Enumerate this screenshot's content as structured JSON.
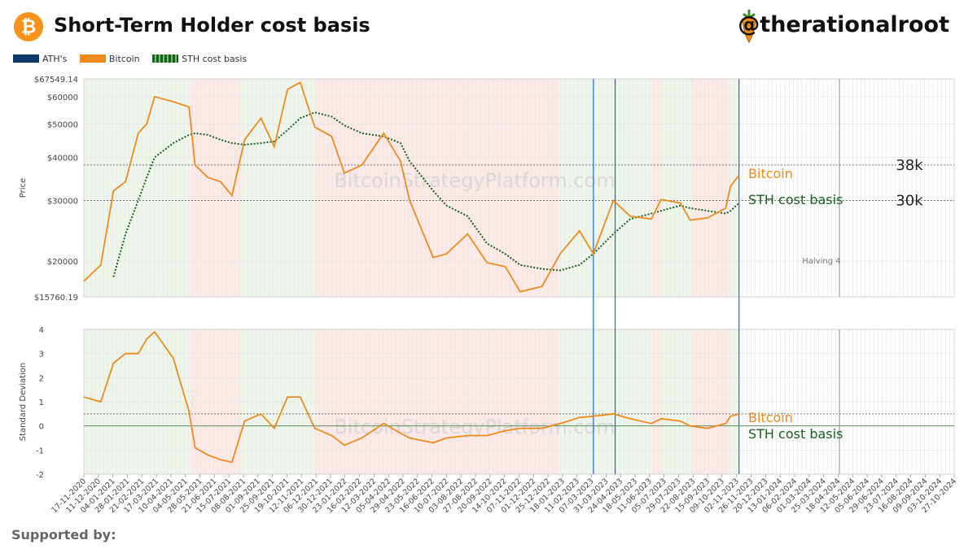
{
  "header": {
    "title": "Short-Term Holder cost basis",
    "handle": "@therationalroot",
    "logo_icon": "bitcoin-icon",
    "handle_icon": "carrot-icon"
  },
  "legend": [
    {
      "label": "ATH's",
      "color": "#0b3b66"
    },
    {
      "label": "Bitcoin",
      "color": "#f08a1c"
    },
    {
      "label": "STH cost basis",
      "color": "#1b5e20"
    }
  ],
  "watermark": "BitcoinStrategyPlatform.com",
  "footer": {
    "text": "Supported by:"
  },
  "chart_data": [
    {
      "type": "line",
      "ylabel": "Price",
      "yscale": "log",
      "ylim": [
        15760.19,
        67549.14
      ],
      "yticks": [
        {
          "v": 67549.14,
          "label": "$67549.14"
        },
        {
          "v": 60000,
          "label": "$60000"
        },
        {
          "v": 50000,
          "label": "$50000"
        },
        {
          "v": 40000,
          "label": "$40000"
        },
        {
          "v": 30000,
          "label": "$30000"
        },
        {
          "v": 20000,
          "label": "$20000"
        },
        {
          "v": 15760.19,
          "label": "$15760.19"
        }
      ],
      "reference_lines": [
        {
          "value": 38000,
          "label": "38k"
        },
        {
          "value": 30000,
          "label": "30k"
        }
      ],
      "series_labels": [
        {
          "name": "Bitcoin",
          "color": "#f08a1c"
        },
        {
          "name": "STH cost basis",
          "color": "#1b5e20"
        }
      ],
      "annotations": [
        {
          "date": "2024-04-20",
          "label": "Halving 4"
        }
      ],
      "x": [
        "2020-11-17",
        "2020-12-15",
        "2021-01-05",
        "2021-01-25",
        "2021-02-15",
        "2021-03-01",
        "2021-03-14",
        "2021-04-14",
        "2021-05-10",
        "2021-05-20",
        "2021-06-10",
        "2021-07-01",
        "2021-07-20",
        "2021-08-10",
        "2021-09-06",
        "2021-09-28",
        "2021-10-20",
        "2021-11-10",
        "2021-12-04",
        "2022-01-01",
        "2022-01-22",
        "2022-02-20",
        "2022-03-28",
        "2022-04-25",
        "2022-05-10",
        "2022-06-18",
        "2022-07-10",
        "2022-08-14",
        "2022-09-15",
        "2022-10-15",
        "2022-11-09",
        "2022-12-15",
        "2023-01-14",
        "2023-02-15",
        "2023-03-10",
        "2023-04-12",
        "2023-05-10",
        "2023-06-14",
        "2023-06-30",
        "2023-08-01",
        "2023-08-17",
        "2023-09-15",
        "2023-10-15",
        "2023-10-23",
        "2023-11-06"
      ],
      "series": [
        {
          "name": "Bitcoin",
          "values": [
            17500,
            19500,
            32000,
            34000,
            47000,
            50000,
            60000,
            58000,
            56000,
            38000,
            35000,
            34000,
            31000,
            45000,
            52000,
            43000,
            63000,
            66000,
            49000,
            46000,
            36000,
            38000,
            47000,
            39000,
            30000,
            20500,
            21000,
            24000,
            19800,
            19300,
            16300,
            16900,
            21000,
            24500,
            21000,
            30000,
            27000,
            26500,
            30200,
            29500,
            26300,
            26700,
            28500,
            33000,
            35500
          ]
        },
        {
          "name": "STH cost basis",
          "values": [
            null,
            null,
            18000,
            24000,
            30000,
            35000,
            40000,
            44000,
            46500,
            47000,
            46500,
            45000,
            44000,
            43500,
            44000,
            44500,
            48000,
            52000,
            54000,
            52500,
            49500,
            47000,
            46000,
            44000,
            39000,
            32000,
            29000,
            27000,
            22500,
            21000,
            19500,
            19000,
            18800,
            19500,
            21000,
            24000,
            26500,
            27500,
            28000,
            29000,
            28500,
            28000,
            27500,
            28000,
            29500
          ]
        }
      ]
    },
    {
      "type": "line",
      "ylabel": "Standard Deviation",
      "ylim": [
        -2,
        4
      ],
      "yticks": [
        4,
        3,
        2,
        1,
        0,
        -1,
        -2
      ],
      "reference_lines": [
        {
          "value": 0.5
        },
        {
          "value": 0
        }
      ],
      "series_labels": [
        {
          "name": "Bitcoin",
          "color": "#f08a1c"
        },
        {
          "name": "STH cost basis",
          "color": "#1b5e20"
        }
      ],
      "x": [
        "2020-11-17",
        "2020-12-15",
        "2021-01-05",
        "2021-01-25",
        "2021-02-15",
        "2021-03-01",
        "2021-03-14",
        "2021-04-14",
        "2021-05-10",
        "2021-05-20",
        "2021-06-10",
        "2021-07-01",
        "2021-07-20",
        "2021-08-10",
        "2021-09-06",
        "2021-09-28",
        "2021-10-20",
        "2021-11-10",
        "2021-12-04",
        "2022-01-01",
        "2022-01-22",
        "2022-02-20",
        "2022-03-28",
        "2022-04-25",
        "2022-05-10",
        "2022-06-18",
        "2022-07-10",
        "2022-08-14",
        "2022-09-15",
        "2022-10-15",
        "2022-11-09",
        "2022-12-15",
        "2023-01-14",
        "2023-02-15",
        "2023-03-10",
        "2023-04-12",
        "2023-05-10",
        "2023-06-14",
        "2023-06-30",
        "2023-08-01",
        "2023-08-17",
        "2023-09-15",
        "2023-10-15",
        "2023-10-23",
        "2023-11-06"
      ],
      "series": [
        {
          "name": "Bitcoin",
          "values": [
            1.2,
            1.0,
            2.6,
            3.0,
            3.0,
            3.6,
            3.9,
            2.8,
            0.6,
            -0.9,
            -1.2,
            -1.4,
            -1.5,
            0.2,
            0.5,
            -0.1,
            1.2,
            1.2,
            -0.1,
            -0.4,
            -0.8,
            -0.5,
            0.1,
            -0.3,
            -0.5,
            -0.7,
            -0.5,
            -0.4,
            -0.4,
            -0.2,
            -0.1,
            -0.1,
            0.1,
            0.35,
            0.4,
            0.5,
            0.3,
            0.1,
            0.3,
            0.2,
            0.0,
            -0.1,
            0.1,
            0.4,
            0.5
          ]
        }
      ]
    }
  ],
  "x_tick_labels": [
    "17-11-2020",
    "11-12-2020",
    "04-01-2021",
    "28-01-2021",
    "21-02-2021",
    "17-03-2021",
    "10-04-2021",
    "04-05-2021",
    "28-05-2021",
    "21-06-2021",
    "15-07-2021",
    "08-08-2021",
    "01-09-2021",
    "25-09-2021",
    "19-10-2021",
    "12-11-2021",
    "06-12-2021",
    "30-12-2021",
    "23-01-2022",
    "16-02-2022",
    "12-03-2022",
    "05-04-2022",
    "29-04-2022",
    "23-05-2022",
    "16-06-2022",
    "10-07-2022",
    "03-08-2022",
    "27-08-2022",
    "20-09-2022",
    "14-10-2022",
    "07-11-2022",
    "01-12-2022",
    "25-12-2022",
    "18-01-2023",
    "11-02-2023",
    "07-03-2023",
    "31-03-2023",
    "24-04-2023",
    "18-05-2023",
    "11-06-2023",
    "05-07-2023",
    "29-07-2023",
    "22-08-2023",
    "15-09-2023",
    "09-10-2023",
    "02-11-2023",
    "26-11-2023",
    "20-12-2023",
    "13-01-2024",
    "06-02-2024",
    "01-03-2024",
    "25-03-2024",
    "18-04-2024",
    "12-05-2024",
    "05-06-2024",
    "29-06-2024",
    "23-07-2024",
    "16-08-2024",
    "09-09-2024",
    "03-10-2024",
    "27-10-2024"
  ],
  "vertical_markers": [
    "2023-03-10",
    "2023-04-15",
    "2023-11-06"
  ],
  "regimes": [
    {
      "start": "2020-11-17",
      "end": "2021-05-12",
      "state": "green"
    },
    {
      "start": "2021-05-12",
      "end": "2021-08-05",
      "state": "red"
    },
    {
      "start": "2021-08-05",
      "end": "2021-12-05",
      "state": "green"
    },
    {
      "start": "2021-12-05",
      "end": "2023-01-12",
      "state": "red"
    },
    {
      "start": "2023-01-12",
      "end": "2023-06-15",
      "state": "green"
    },
    {
      "start": "2023-06-15",
      "end": "2023-07-01",
      "state": "red"
    },
    {
      "start": "2023-07-01",
      "end": "2023-08-20",
      "state": "green"
    },
    {
      "start": "2023-08-20",
      "end": "2023-10-20",
      "state": "red"
    },
    {
      "start": "2023-10-20",
      "end": "2023-11-06",
      "state": "green"
    }
  ]
}
